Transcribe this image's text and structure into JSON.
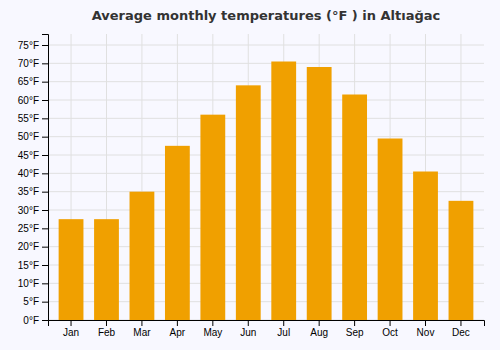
{
  "chart_data": {
    "type": "bar",
    "title": "Average monthly temperatures (°F ) in Altıağac",
    "categories": [
      "Jan",
      "Feb",
      "Mar",
      "Apr",
      "May",
      "Jun",
      "Jul",
      "Aug",
      "Sep",
      "Oct",
      "Nov",
      "Dec"
    ],
    "values": [
      27.5,
      27.5,
      35,
      47.5,
      56,
      64,
      70.5,
      69,
      61.5,
      49.5,
      40.5,
      32.5
    ],
    "color": "#F0A000",
    "ylim": [
      0,
      78
    ],
    "yticks": [
      {
        "value": 0,
        "label": "0°F"
      },
      {
        "value": 5,
        "label": "5°F"
      },
      {
        "value": 10,
        "label": "10°F"
      },
      {
        "value": 15,
        "label": "15°F"
      },
      {
        "value": 20,
        "label": "20°F"
      },
      {
        "value": 25,
        "label": "25°F"
      },
      {
        "value": 30,
        "label": "30°F"
      },
      {
        "value": 35,
        "label": "35°F"
      },
      {
        "value": 40,
        "label": "40°F"
      },
      {
        "value": 45,
        "label": "45°F"
      },
      {
        "value": 50,
        "label": "50°F"
      },
      {
        "value": 55,
        "label": "55°F"
      },
      {
        "value": 60,
        "label": "60°F"
      },
      {
        "value": 65,
        "label": "65°F"
      },
      {
        "value": 70,
        "label": "70°F"
      },
      {
        "value": 75,
        "label": "75°F"
      }
    ],
    "grid": true
  }
}
